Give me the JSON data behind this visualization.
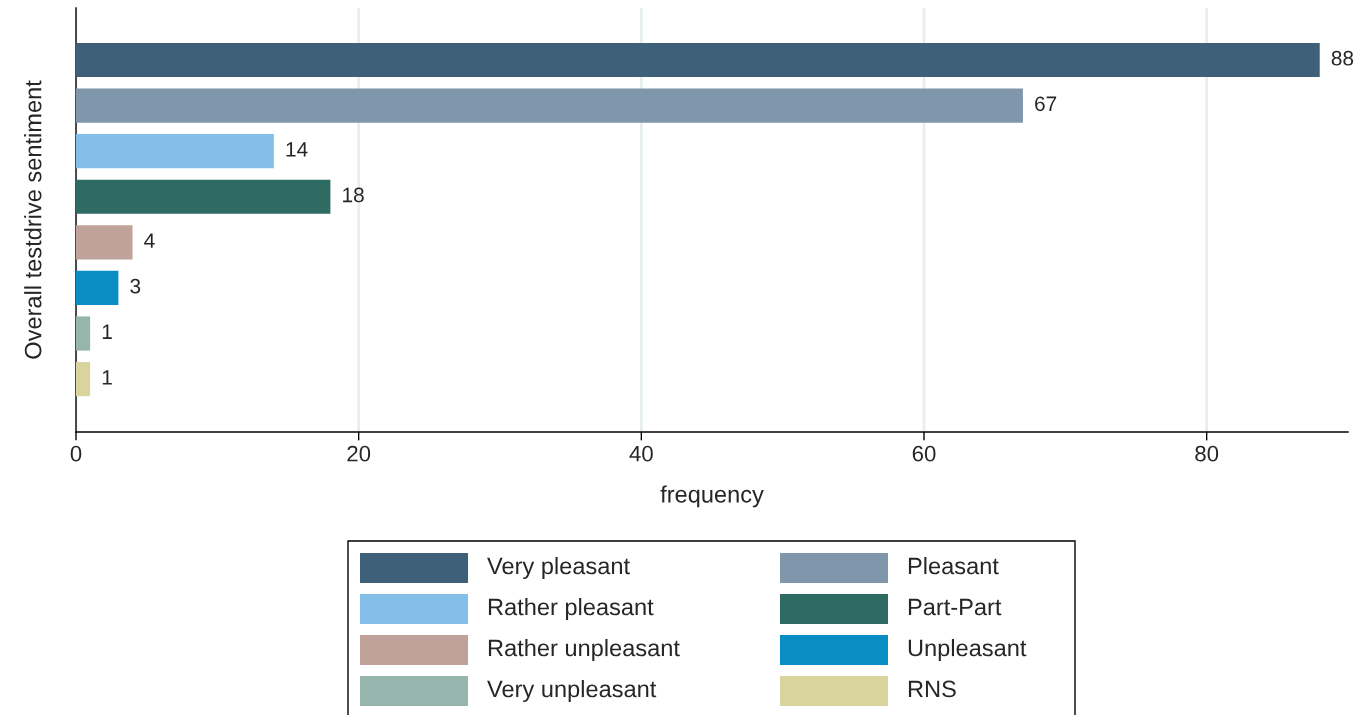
{
  "chart_data": {
    "type": "bar",
    "orientation": "horizontal",
    "ylabel": "Overall testdrive sentiment",
    "xlabel": "frequency",
    "categories": [
      null,
      null,
      null,
      null,
      null,
      null,
      null,
      null
    ],
    "series": [
      {
        "name": "Very pleasant",
        "color": "#3e6179",
        "values": [
          88,
          null,
          null,
          null,
          null,
          null,
          null,
          null
        ]
      },
      {
        "name": "Pleasant",
        "color": "#7f96ab",
        "values": [
          null,
          67,
          null,
          null,
          null,
          null,
          null,
          null
        ]
      },
      {
        "name": "Rather pleasant",
        "color": "#83bfe9",
        "values": [
          null,
          null,
          14,
          null,
          null,
          null,
          null,
          null
        ]
      },
      {
        "name": "Part-Part",
        "color": "#2e6b62",
        "values": [
          null,
          null,
          null,
          18,
          null,
          null,
          null,
          null
        ]
      },
      {
        "name": "Rather unpleasant",
        "color": "#c0a29a",
        "values": [
          null,
          null,
          null,
          null,
          4,
          null,
          null,
          null
        ]
      },
      {
        "name": "Unpleasant",
        "color": "#0a8dc2",
        "values": [
          null,
          null,
          null,
          null,
          null,
          3,
          null,
          null
        ]
      },
      {
        "name": "Very unpleasant",
        "color": "#96b5ad",
        "values": [
          null,
          null,
          null,
          null,
          null,
          null,
          1,
          null
        ]
      },
      {
        "name": "RNS",
        "color": "#d9d49e",
        "values": [
          null,
          null,
          null,
          null,
          null,
          null,
          null,
          1
        ]
      }
    ],
    "xlim": [
      0,
      90
    ],
    "xticks": [
      0,
      20,
      40,
      60,
      80
    ],
    "grid": "x",
    "data_labels": true,
    "legend": "bottom"
  }
}
